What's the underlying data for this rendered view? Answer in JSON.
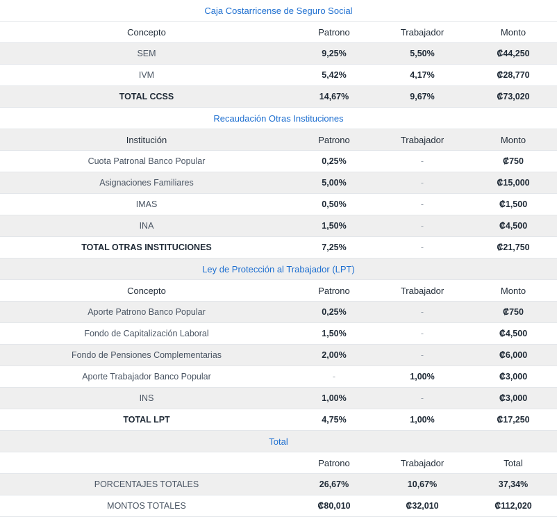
{
  "sections": [
    {
      "title": "Caja Costarricense de Seguro Social",
      "headers": [
        "Concepto",
        "Patrono",
        "Trabajador",
        "Monto"
      ],
      "rows": [
        [
          "SEM",
          "9,25%",
          "5,50%",
          "₡44,250"
        ],
        [
          "IVM",
          "5,42%",
          "4,17%",
          "₡28,770"
        ],
        [
          "TOTAL CCSS",
          "14,67%",
          "9,67%",
          "₡73,020"
        ]
      ]
    },
    {
      "title": "Recaudación Otras Instituciones",
      "headers": [
        "Institución",
        "Patrono",
        "Trabajador",
        "Monto"
      ],
      "rows": [
        [
          "Cuota Patronal Banco Popular",
          "0,25%",
          "-",
          "₡750"
        ],
        [
          "Asignaciones Familiares",
          "5,00%",
          "-",
          "₡15,000"
        ],
        [
          "IMAS",
          "0,50%",
          "-",
          "₡1,500"
        ],
        [
          "INA",
          "1,50%",
          "-",
          "₡4,500"
        ],
        [
          "TOTAL OTRAS INSTITUCIONES",
          "7,25%",
          "-",
          "₡21,750"
        ]
      ]
    },
    {
      "title": "Ley de Protección al Trabajador (LPT)",
      "headers": [
        "Concepto",
        "Patrono",
        "Trabajador",
        "Monto"
      ],
      "rows": [
        [
          "Aporte Patrono Banco Popular",
          "0,25%",
          "-",
          "₡750"
        ],
        [
          "Fondo de Capitalización Laboral",
          "1,50%",
          "-",
          "₡4,500"
        ],
        [
          "Fondo de Pensiones Complementarias",
          "2,00%",
          "-",
          "₡6,000"
        ],
        [
          "Aporte Trabajador Banco Popular",
          "-",
          "1,00%",
          "₡3,000"
        ],
        [
          "INS",
          "1,00%",
          "-",
          "₡3,000"
        ],
        [
          "TOTAL LPT",
          "4,75%",
          "1,00%",
          "₡17,250"
        ]
      ]
    },
    {
      "title": "Total",
      "headers": [
        "",
        "Patrono",
        "Trabajador",
        "Total"
      ],
      "rows": [
        [
          "PORCENTAJES TOTALES",
          "26,67%",
          "10,67%",
          "37,34%"
        ],
        [
          "MONTOS TOTALES",
          "₡80,010",
          "₡32,010",
          "₡112,020"
        ]
      ]
    }
  ]
}
